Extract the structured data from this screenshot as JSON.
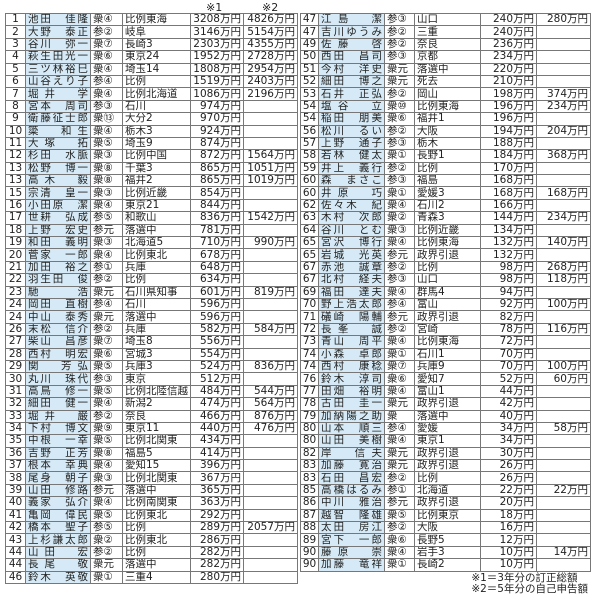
{
  "header": {
    "col1_mark": "※1",
    "col2_mark": "※2"
  },
  "left": {
    "rows": [
      [
        "1",
        "池田　佳隆",
        "衆④",
        "比例東海",
        "3208万円",
        "4826万円"
      ],
      [
        "2",
        "大野　泰正",
        "参②",
        "岐阜",
        "3146万円",
        "5154万円"
      ],
      [
        "3",
        "谷川　弥一",
        "衆⑦",
        "長崎3",
        "2303万円",
        "4355万円"
      ],
      [
        "4",
        "萩生田光一",
        "衆⑥",
        "東京24",
        "1952万円",
        "2728万円"
      ],
      [
        "5",
        "三ツ林裕巳",
        "衆④",
        "埼玉14",
        "1808万円",
        "2954万円"
      ],
      [
        "6",
        "山谷えり子",
        "参④",
        "比例",
        "1519万円",
        "2403万円"
      ],
      [
        "7",
        "堀井　学",
        "衆④",
        "比例北海道",
        "1086万円",
        "2196万円"
      ],
      [
        "8",
        "宮本　周司",
        "参③",
        "石川",
        "974万円",
        ""
      ],
      [
        "9",
        "衛藤征士郎",
        "衆⑬",
        "大分2",
        "970万円",
        ""
      ],
      [
        "10",
        "簗　和生",
        "衆④",
        "栃木3",
        "924万円",
        ""
      ],
      [
        "11",
        "大塚　拓",
        "衆⑤",
        "埼玉9",
        "874万円",
        ""
      ],
      [
        "12",
        "杉田　水脈",
        "衆③",
        "比例中国",
        "872万円",
        "1564万円"
      ],
      [
        "13",
        "松野　博一",
        "衆⑧",
        "千葉3",
        "865万円",
        "1051万円"
      ],
      [
        "13",
        "高木　毅",
        "衆⑧",
        "福井2",
        "865万円",
        "1019万円"
      ],
      [
        "15",
        "宗清　皇一",
        "衆③",
        "比例近畿",
        "854万円",
        ""
      ],
      [
        "16",
        "小田原　潔",
        "衆④",
        "東京21",
        "844万円",
        ""
      ],
      [
        "17",
        "世耕　弘成",
        "参⑤",
        "和歌山",
        "836万円",
        "1542万円"
      ],
      [
        "18",
        "上野　宏史",
        "参元",
        "落選中",
        "781万円",
        ""
      ],
      [
        "19",
        "和田　義明",
        "衆③",
        "北海道5",
        "710万円",
        "990万円"
      ],
      [
        "20",
        "菅家　一郎",
        "衆④",
        "比例東北",
        "678万円",
        ""
      ],
      [
        "21",
        "加田　裕之",
        "参①",
        "兵庫",
        "648万円",
        ""
      ],
      [
        "22",
        "羽生田　俊",
        "参②",
        "比例",
        "634万円",
        ""
      ],
      [
        "23",
        "馳　浩",
        "衆元",
        "石川県知事",
        "601万円",
        "819万円"
      ],
      [
        "24",
        "岡田　直樹",
        "参④",
        "石川",
        "596万円",
        ""
      ],
      [
        "24",
        "中山　泰秀",
        "衆元",
        "落選中",
        "596万円",
        ""
      ],
      [
        "26",
        "末松　信介",
        "参②",
        "兵庫",
        "582万円",
        "584万円"
      ],
      [
        "27",
        "柴山　昌彦",
        "衆⑦",
        "埼玉8",
        "556万円",
        ""
      ],
      [
        "28",
        "西村　明宏",
        "衆⑥",
        "宮城3",
        "554万円",
        ""
      ],
      [
        "29",
        "関　芳弘",
        "衆⑤",
        "兵庫3",
        "524万円",
        "836万円"
      ],
      [
        "30",
        "丸川　珠代",
        "参③",
        "東京",
        "512万円",
        ""
      ],
      [
        "31",
        "高鳥　修一",
        "衆⑤",
        "比例北陸信越",
        "484万円",
        "544万円"
      ],
      [
        "32",
        "細田　健一",
        "衆④",
        "新潟2",
        "474万円",
        "564万円"
      ],
      [
        "33",
        "堀井　巌",
        "参②",
        "奈良",
        "466万円",
        "876万円"
      ],
      [
        "34",
        "下村　博文",
        "衆⑨",
        "東京11",
        "440万円",
        "476万円"
      ],
      [
        "35",
        "中根　一幸",
        "衆⑤",
        "比例北関東",
        "434万円",
        ""
      ],
      [
        "36",
        "吉野　正芳",
        "衆⑧",
        "福島5",
        "414万円",
        ""
      ],
      [
        "37",
        "根本　幸典",
        "衆④",
        "愛知15",
        "396万円",
        ""
      ],
      [
        "38",
        "尾身　朝子",
        "衆③",
        "比例北関東",
        "367万円",
        ""
      ],
      [
        "39",
        "山田　修路",
        "参元",
        "落選中",
        "365万円",
        ""
      ],
      [
        "40",
        "義家　弘介",
        "衆④",
        "比例南関東",
        "363万円",
        ""
      ],
      [
        "41",
        "亀岡　偉民",
        "衆⑤",
        "比例東北",
        "292万円",
        ""
      ],
      [
        "42",
        "橋本　聖子",
        "参⑤",
        "比例",
        "289万円",
        "2057万円"
      ],
      [
        "43",
        "上杉謙太郎",
        "衆②",
        "比例東北",
        "286万円",
        ""
      ],
      [
        "44",
        "山田　宏",
        "参②",
        "比例",
        "282万円",
        ""
      ],
      [
        "44",
        "長尾　敬",
        "衆元",
        "落選中",
        "282万円",
        ""
      ],
      [
        "46",
        "鈴木　英敬",
        "衆①",
        "三重4",
        "280万円",
        ""
      ]
    ]
  },
  "right": {
    "rows": [
      [
        "47",
        "江島　潔",
        "参③",
        "山口",
        "240万円",
        "280万円"
      ],
      [
        "47",
        "吉川ゆうみ",
        "参②",
        "三重",
        "240万円",
        ""
      ],
      [
        "49",
        "佐藤　啓",
        "参②",
        "奈良",
        "236万円",
        ""
      ],
      [
        "50",
        "西田　昌司",
        "参③",
        "京都",
        "234万円",
        ""
      ],
      [
        "51",
        "今村　洋史",
        "衆元",
        "落選中",
        "220万円",
        ""
      ],
      [
        "52",
        "細田　博之",
        "衆元",
        "死去",
        "210万円",
        ""
      ],
      [
        "53",
        "石井　正弘",
        "参②",
        "岡山",
        "198万円",
        "374万円"
      ],
      [
        "54",
        "塩谷　立",
        "衆⑩",
        "比例東海",
        "196万円",
        "234万円"
      ],
      [
        "54",
        "稲田　朋美",
        "衆⑥",
        "福井1",
        "196万円",
        ""
      ],
      [
        "56",
        "松川　るい",
        "参②",
        "大阪",
        "194万円",
        "204万円"
      ],
      [
        "57",
        "上野　通子",
        "参③",
        "栃木",
        "188万円",
        ""
      ],
      [
        "58",
        "若林　健太",
        "衆①",
        "長野1",
        "184万円",
        "368万円"
      ],
      [
        "59",
        "井上　義行",
        "参②",
        "比例",
        "170万円",
        ""
      ],
      [
        "60",
        "森　まさこ",
        "参③",
        "福島",
        "168万円",
        ""
      ],
      [
        "60",
        "井原　巧",
        "衆①",
        "愛媛3",
        "168万円",
        "168万円"
      ],
      [
        "62",
        "佐々木　紀",
        "衆④",
        "石川2",
        "166万円",
        ""
      ],
      [
        "63",
        "木村　次郎",
        "衆②",
        "青森3",
        "144万円",
        "234万円"
      ],
      [
        "64",
        "谷川　とむ",
        "衆③",
        "比例近畿",
        "134万円",
        ""
      ],
      [
        "65",
        "宮沢　博行",
        "衆④",
        "比例東海",
        "132万円",
        "140万円"
      ],
      [
        "65",
        "岩城　光英",
        "参元",
        "政界引退",
        "132万円",
        ""
      ],
      [
        "67",
        "赤池　誠章",
        "参②",
        "比例",
        "98万円",
        "268万円"
      ],
      [
        "67",
        "北村　経夫",
        "参③",
        "山口",
        "98万円",
        "118万円"
      ],
      [
        "69",
        "福田　達夫",
        "衆④",
        "群馬4",
        "94万円",
        ""
      ],
      [
        "70",
        "野上浩太郎",
        "参④",
        "富山",
        "92万円",
        "100万円"
      ],
      [
        "71",
        "礒崎　陽輔",
        "参元",
        "政界引退",
        "82万円",
        ""
      ],
      [
        "72",
        "長峯　誠",
        "参②",
        "宮崎",
        "78万円",
        "116万円"
      ],
      [
        "73",
        "青山　周平",
        "衆④",
        "比例東海",
        "72万円",
        ""
      ],
      [
        "74",
        "小森　卓郎",
        "衆①",
        "石川1",
        "70万円",
        ""
      ],
      [
        "74",
        "西村　康稔",
        "衆⑦",
        "兵庫9",
        "70万円",
        "100万円"
      ],
      [
        "76",
        "鈴木　淳司",
        "衆⑥",
        "愛知7",
        "52万円",
        "60万円"
      ],
      [
        "77",
        "田畑　裕明",
        "衆④",
        "富山1",
        "44万円",
        ""
      ],
      [
        "78",
        "古田　圭一",
        "衆元",
        "政界引退",
        "42万円",
        ""
      ],
      [
        "79",
        "加納陽之助",
        "衆",
        "落選中",
        "40万円",
        ""
      ],
      [
        "80",
        "山本　順三",
        "参④",
        "愛媛",
        "34万円",
        "58万円"
      ],
      [
        "80",
        "山田　美樹",
        "衆④",
        "東京1",
        "34万円",
        ""
      ],
      [
        "82",
        "岸　信夫",
        "衆元",
        "政界引退",
        "30万円",
        ""
      ],
      [
        "83",
        "加藤　寛治",
        "衆元",
        "政界引退",
        "26万円",
        ""
      ],
      [
        "83",
        "石田　昌宏",
        "参②",
        "比例",
        "26万円",
        ""
      ],
      [
        "85",
        "高橋はるみ",
        "参①",
        "北海道",
        "22万円",
        "22万円"
      ],
      [
        "86",
        "中川　雅治",
        "参元",
        "政界引退",
        "20万円",
        ""
      ],
      [
        "87",
        "越智　隆雄",
        "衆⑤",
        "比例東京",
        "18万円",
        ""
      ],
      [
        "88",
        "太田　房江",
        "参②",
        "大阪",
        "16万円",
        ""
      ],
      [
        "89",
        "宮下　一郎",
        "衆⑥",
        "長野5",
        "12万円",
        ""
      ],
      [
        "90",
        "藤原　崇",
        "衆④",
        "岩手3",
        "10万円",
        "14万円"
      ],
      [
        "90",
        "加藤　竜祥",
        "衆①",
        "長崎2",
        "10万円",
        ""
      ]
    ]
  },
  "notes": [
    "※1＝3年分の訂正総額",
    "※2＝5年分の自己申告額"
  ]
}
